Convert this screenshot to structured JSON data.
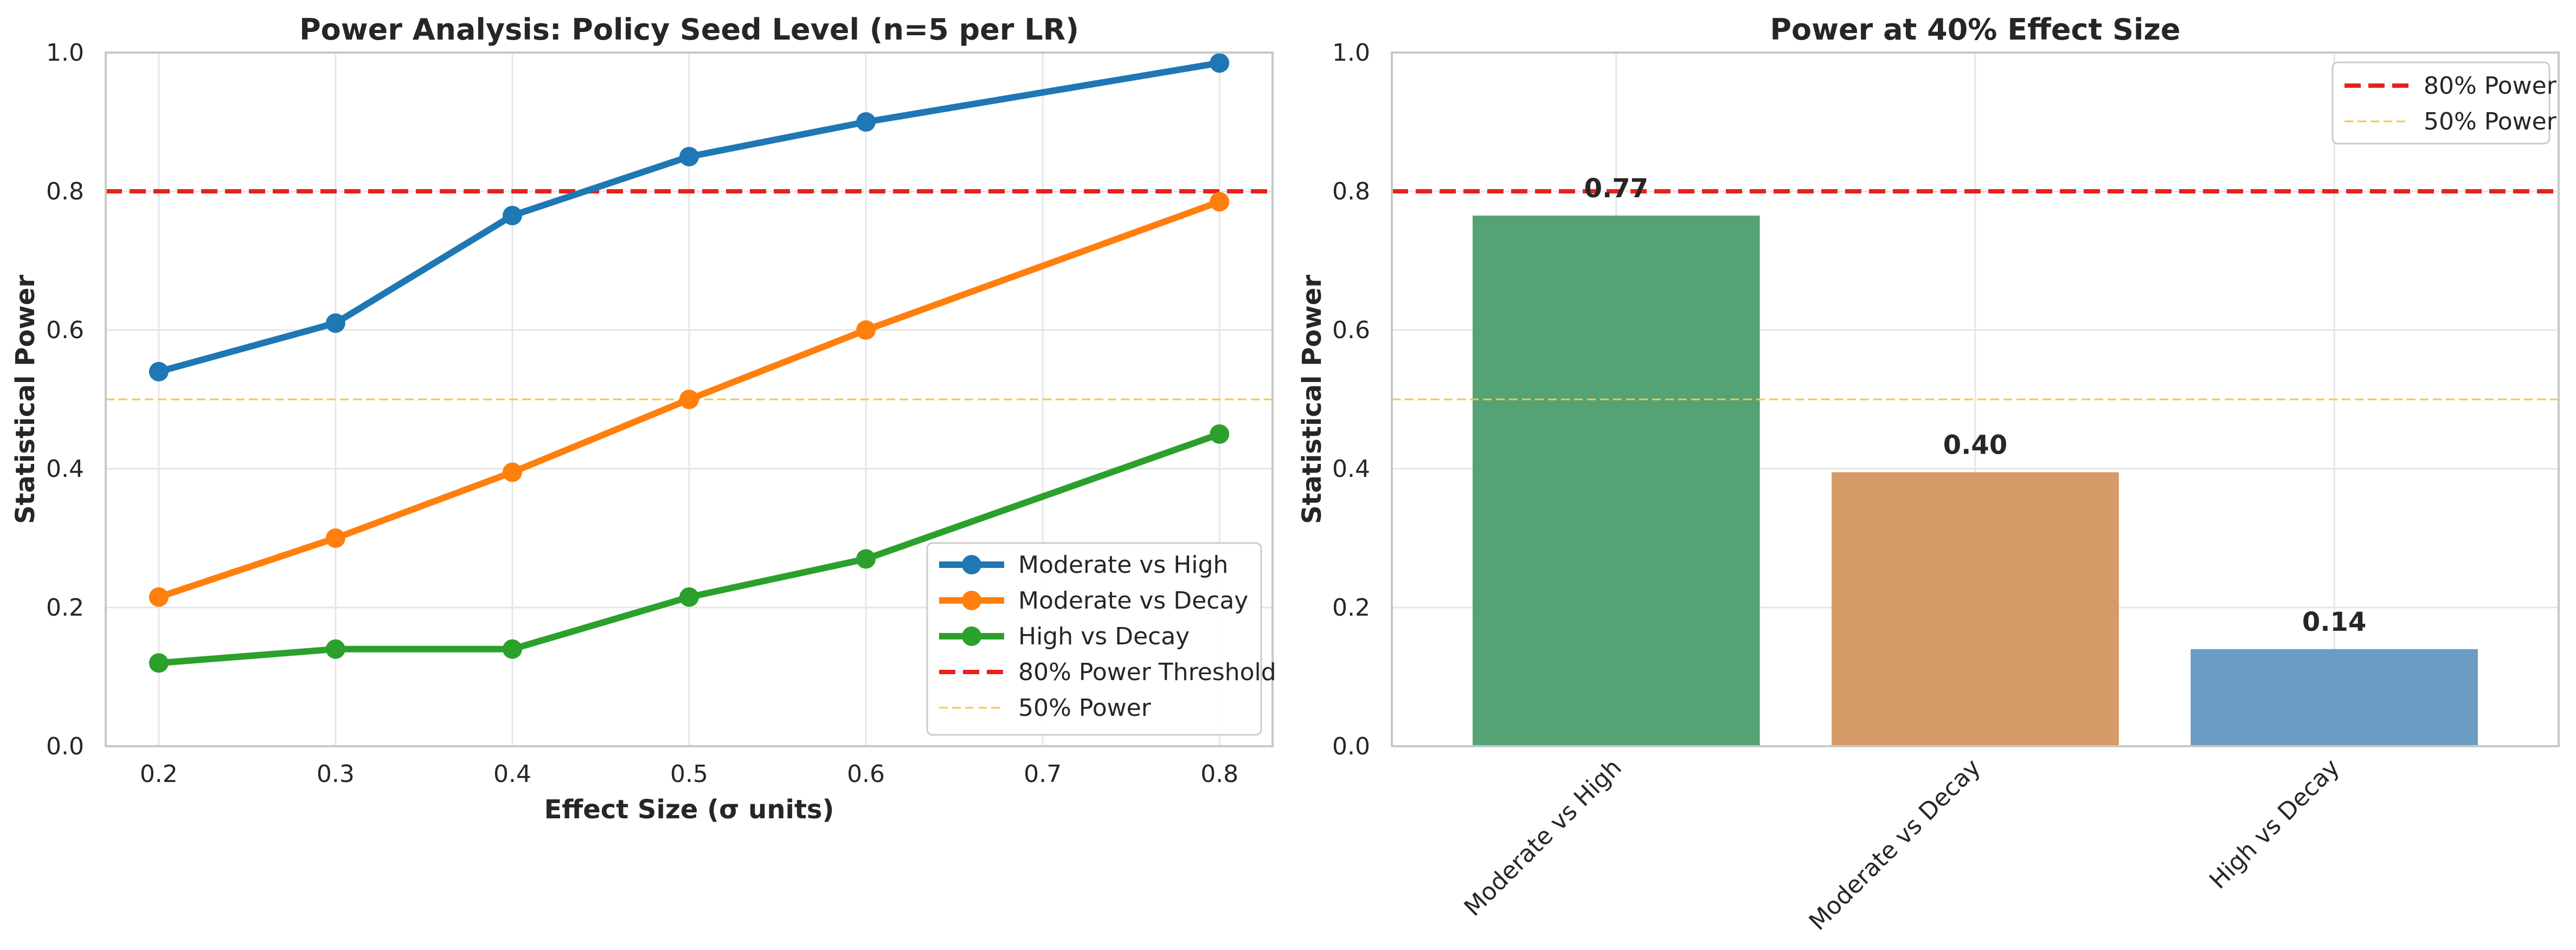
{
  "chart_data": [
    {
      "type": "line",
      "title": "Power Analysis: Policy Seed Level (n=5 per LR)",
      "xlabel": "Effect Size (σ units)",
      "ylabel": "Statistical Power",
      "xlim": [
        0.17,
        0.83
      ],
      "ylim": [
        0.0,
        1.0
      ],
      "x_ticks": [
        "0.2",
        "0.3",
        "0.4",
        "0.5",
        "0.6",
        "0.7",
        "0.8"
      ],
      "y_ticks": [
        "0.0",
        "0.2",
        "0.4",
        "0.6",
        "0.8",
        "1.0"
      ],
      "grid": true,
      "legend_position": "lower-right",
      "x": [
        0.2,
        0.3,
        0.4,
        0.5,
        0.6,
        0.8
      ],
      "series": [
        {
          "name": "Moderate vs High",
          "color": "#1f77b4",
          "values": [
            0.54,
            0.61,
            0.765,
            0.85,
            0.9,
            0.985
          ]
        },
        {
          "name": "Moderate vs Decay",
          "color": "#ff7f0e",
          "values": [
            0.215,
            0.3,
            0.395,
            0.5,
            0.6,
            0.785
          ]
        },
        {
          "name": "High vs Decay",
          "color": "#2ca02c",
          "values": [
            0.12,
            0.14,
            0.14,
            0.215,
            0.27,
            0.45
          ]
        }
      ],
      "reference_lines": [
        {
          "name": "80% Power Threshold",
          "value": 0.8,
          "color": "#e8211b",
          "style": "dashed"
        },
        {
          "name": "50% Power",
          "value": 0.5,
          "color": "#f5c842",
          "style": "dashed-thin"
        }
      ]
    },
    {
      "type": "bar",
      "title": "Power at 40% Effect Size",
      "xlabel": "",
      "ylabel": "Statistical Power",
      "ylim": [
        0.0,
        1.0
      ],
      "y_ticks": [
        "0.0",
        "0.2",
        "0.4",
        "0.6",
        "0.8",
        "1.0"
      ],
      "grid": true,
      "legend_position": "top-right",
      "categories": [
        "Moderate vs High",
        "Moderate vs Decay",
        "High vs Decay"
      ],
      "values": [
        0.765,
        0.395,
        0.14
      ],
      "value_labels": [
        "0.77",
        "0.40",
        "0.14"
      ],
      "bar_colors": [
        "#55a275",
        "#d59b66",
        "#6a9cc4"
      ],
      "reference_lines": [
        {
          "name": "80% Power",
          "value": 0.8,
          "color": "#e8211b",
          "style": "dashed"
        },
        {
          "name": "50% Power",
          "value": 0.5,
          "color": "#f5c842",
          "style": "dashed-thin"
        }
      ]
    }
  ]
}
